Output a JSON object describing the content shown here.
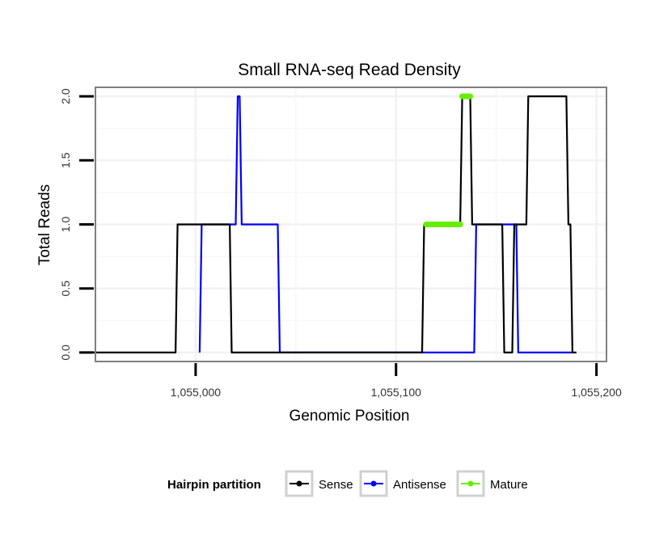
{
  "chart_data": {
    "type": "line",
    "title": "Small RNA-seq Read Density",
    "xlabel": "Genomic Position",
    "ylabel": "Total Reads",
    "xlim": [
      1054950,
      1055205
    ],
    "ylim": [
      -0.07,
      2.07
    ],
    "x_ticks": [
      1055000,
      1055100,
      1055200
    ],
    "x_tick_labels": [
      "1,055,000",
      "1,055,100",
      "1,055,200"
    ],
    "y_ticks": [
      0,
      0.5,
      1,
      1.5,
      2
    ],
    "y_tick_labels": [
      "0.0",
      "0.5",
      "1.0",
      "1.5",
      "2.0"
    ],
    "grid": true,
    "legend": {
      "title": "Hairpin partition",
      "position": "bottom",
      "entries": [
        "Sense",
        "Antisense",
        "Mature"
      ]
    },
    "series": [
      {
        "name": "Sense",
        "color": "#000000",
        "x": [
          1054943,
          1054990,
          1054991,
          1055017,
          1055018,
          1055113,
          1055114,
          1055132,
          1055133,
          1055137,
          1055138,
          1055153,
          1055154,
          1055158,
          1055159,
          1055165,
          1055166,
          1055185,
          1055186,
          1055187,
          1055188,
          1055190
        ],
        "y": [
          0,
          0,
          1,
          1,
          0,
          0,
          1,
          1,
          2,
          2,
          1,
          1,
          0,
          0,
          1,
          1,
          2,
          2,
          1,
          1,
          0,
          0
        ]
      },
      {
        "name": "Antisense",
        "color": "#0000ff",
        "x": [
          1055002,
          1055003,
          1055020,
          1055021,
          1055022,
          1055023,
          1055041,
          1055042,
          1055139,
          1055140,
          1055160,
          1055161,
          1055188
        ],
        "y": [
          0,
          1,
          1,
          2,
          2,
          1,
          1,
          0,
          0,
          1,
          1,
          0,
          0
        ]
      },
      {
        "name": "Mature",
        "color": "#66ee00",
        "x": [
          1055115,
          1055132
        ],
        "y": [
          1,
          1
        ],
        "x2": [
          1055133,
          1055137
        ],
        "y2": [
          2,
          2
        ]
      }
    ]
  }
}
